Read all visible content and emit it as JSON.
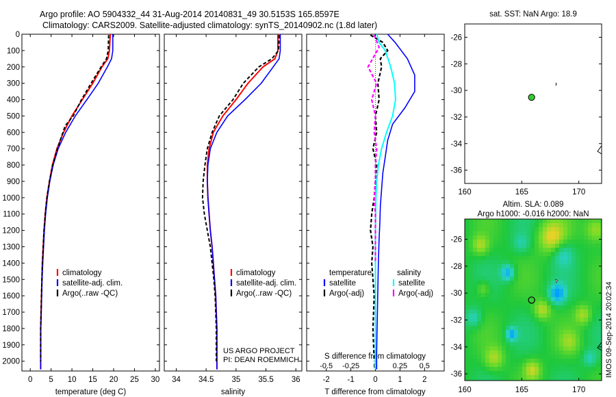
{
  "header": {
    "line1": "Argo profile: AO 5904332_44 31-Aug-2014 20140831_49 30.5153S 165.8597E",
    "line2": "Climatology: CARS2009. Satellite-adjusted climatology: synTS_20140902.nc (1.8d later)"
  },
  "colors": {
    "climatology": "#ff0000",
    "satellite": "#0000ff",
    "argo": "#000000",
    "sat_salinity": "#00ffff",
    "argo_salinity": "#ff00ff",
    "argo_marker": "#33cc33"
  },
  "chart_data": [
    {
      "type": "line",
      "id": "temperature",
      "xlabel": "temperature (deg C)",
      "ylabel": "",
      "xlim": [
        -2,
        31
      ],
      "ylim": [
        2060,
        0
      ],
      "xticks": [
        0,
        5,
        10,
        15,
        20,
        25,
        30
      ],
      "xtick_labels": [
        "0",
        "5",
        "10",
        "15",
        "20",
        "25",
        "30"
      ],
      "yticks": [
        0,
        100,
        200,
        300,
        400,
        500,
        600,
        700,
        800,
        900,
        1000,
        1100,
        1200,
        1300,
        1400,
        1500,
        1600,
        1700,
        1800,
        1900,
        2000
      ],
      "ytick_labels": [
        "0",
        "100",
        "200",
        "300",
        "400",
        "500",
        "600",
        "700",
        "800",
        "900",
        "1000",
        "1100",
        "1200",
        "1300",
        "1400",
        "1500",
        "1600",
        "1700",
        "1800",
        "1900",
        "2000"
      ],
      "legend": [
        "climatology",
        "satellite-adj. clim.",
        "Argo(..raw -QC)"
      ],
      "series": [
        {
          "name": "climatology",
          "color": "#ff0000",
          "x": [
            19.2,
            19.0,
            18.6,
            17.2,
            15.0,
            12.5,
            10.0,
            8.0,
            6.4,
            5.3,
            4.6,
            4.0,
            3.6,
            3.3,
            3.1,
            2.9,
            2.8,
            2.7,
            2.6,
            2.5,
            2.5
          ],
          "y": [
            0,
            100,
            150,
            200,
            300,
            400,
            500,
            600,
            700,
            800,
            900,
            1000,
            1100,
            1200,
            1300,
            1400,
            1500,
            1600,
            1700,
            1800,
            2050
          ]
        },
        {
          "name": "satellite-adj. clim.",
          "color": "#0000ff",
          "x": [
            19.8,
            19.8,
            19.5,
            18.5,
            16.3,
            13.6,
            10.8,
            8.5,
            6.7,
            5.5,
            4.7,
            4.1,
            3.7,
            3.4,
            3.2,
            3.0,
            2.85,
            2.75,
            2.65,
            2.55,
            2.5
          ],
          "y": [
            0,
            100,
            150,
            200,
            300,
            400,
            500,
            600,
            700,
            800,
            900,
            1000,
            1100,
            1200,
            1300,
            1400,
            1500,
            1600,
            1700,
            1800,
            2050
          ]
        },
        {
          "name": "Argo(..raw -QC)",
          "color": "#000000",
          "x": [
            18.8,
            18.7,
            18.3,
            17.0,
            14.6,
            12.3,
            10.3,
            8.4,
            6.5,
            5.4,
            4.6,
            4.0,
            3.6,
            3.3,
            3.1,
            2.95,
            2.8,
            2.7,
            2.6,
            2.5,
            2.5
          ],
          "y": [
            5,
            100,
            150,
            200,
            300,
            400,
            500,
            560,
            700,
            800,
            900,
            1000,
            1100,
            1200,
            1300,
            1400,
            1500,
            1600,
            1700,
            1800,
            2000
          ]
        }
      ]
    },
    {
      "type": "line",
      "id": "salinity",
      "xlabel": "salinity",
      "ylabel": "",
      "xlim": [
        33.8,
        36.1
      ],
      "ylim": [
        2060,
        0
      ],
      "xticks": [
        34,
        34.5,
        35,
        35.5,
        36
      ],
      "xtick_labels": [
        "34",
        "34.5",
        "35",
        "35.5",
        "36"
      ],
      "legend": [
        "climatology",
        "satellite-adj. clim.",
        "Argo(..raw -QC)"
      ],
      "annotation": [
        "US ARGO PROJECT",
        "PI: DEAN ROEMMICH"
      ],
      "series": [
        {
          "name": "climatology",
          "color": "#ff0000",
          "x": [
            35.7,
            35.7,
            35.65,
            35.45,
            35.2,
            35.0,
            34.78,
            34.62,
            34.55,
            34.52,
            34.52,
            34.53,
            34.55,
            34.57,
            34.6,
            34.62,
            34.64,
            34.66,
            34.67,
            34.68,
            34.68
          ],
          "y": [
            0,
            100,
            150,
            200,
            300,
            400,
            500,
            600,
            700,
            800,
            900,
            1000,
            1100,
            1200,
            1300,
            1400,
            1500,
            1600,
            1700,
            1800,
            2050
          ]
        },
        {
          "name": "satellite-adj. clim.",
          "color": "#0000ff",
          "x": [
            35.74,
            35.74,
            35.72,
            35.62,
            35.42,
            35.15,
            34.86,
            34.68,
            34.57,
            34.53,
            34.52,
            34.53,
            34.55,
            34.57,
            34.6,
            34.62,
            34.64,
            34.66,
            34.67,
            34.68,
            34.68
          ],
          "y": [
            0,
            100,
            150,
            200,
            300,
            400,
            500,
            600,
            700,
            800,
            900,
            1000,
            1100,
            1200,
            1300,
            1400,
            1500,
            1600,
            1700,
            1800,
            2050
          ]
        },
        {
          "name": "Argo(..raw -QC)",
          "color": "#000000",
          "x": [
            35.72,
            35.71,
            35.6,
            35.38,
            35.12,
            34.95,
            34.72,
            34.6,
            34.52,
            34.48,
            34.45,
            34.44,
            34.47,
            34.52,
            34.57,
            34.6,
            34.63,
            34.65,
            34.66,
            34.67,
            34.67
          ],
          "y": [
            5,
            100,
            150,
            200,
            300,
            400,
            500,
            600,
            700,
            800,
            900,
            1000,
            1100,
            1200,
            1300,
            1400,
            1500,
            1600,
            1700,
            1800,
            2000
          ]
        }
      ]
    },
    {
      "type": "line",
      "id": "difference",
      "xlabel": "T difference from climatology",
      "xlabel_top": "S difference from climatology",
      "xlim": [
        -2.8,
        2.8
      ],
      "ylim": [
        2060,
        0
      ],
      "xticks": [
        -2,
        -1,
        0,
        1,
        2
      ],
      "xtick_labels": [
        "-2",
        "-1",
        "0",
        "1",
        "2"
      ],
      "xticks_s": [
        -0.5,
        -0.25,
        0,
        0.25,
        0.5
      ],
      "xtick_labels_s": [
        "-0.5",
        "-0.25",
        "0",
        "0.25",
        "0.5"
      ],
      "legend_temperature_title": "temperature",
      "legend_salinity_title": "salinity",
      "legend": [
        "satellite",
        "Argo(-adj)",
        "satellite",
        "Argo(-adj)"
      ],
      "series": [
        {
          "name": "temperature satellite",
          "color": "#0000ff",
          "x": [
            0.5,
            0.8,
            1.3,
            1.6,
            1.6,
            1.2,
            0.7,
            0.5,
            0.4,
            0.3,
            0.25,
            0.2,
            0.18,
            0.15,
            0.12,
            0.1,
            0.08,
            0.06,
            0.05,
            0.05
          ],
          "y": [
            0,
            50,
            150,
            250,
            350,
            450,
            550,
            650,
            750,
            850,
            950,
            1050,
            1150,
            1250,
            1400,
            1550,
            1700,
            1850,
            1950,
            2050
          ]
        },
        {
          "name": "temperature Argo(-adj)",
          "color": "#000000",
          "x": [
            -0.2,
            0.3,
            0.5,
            0.2,
            0.25,
            0.1,
            0.15,
            0.0,
            0.05,
            -0.1,
            0.05,
            0.0,
            -0.05,
            -0.15,
            -0.2,
            -0.1,
            -0.15,
            -0.1,
            -0.05,
            -0.1,
            -0.05
          ],
          "y": [
            5,
            50,
            100,
            150,
            200,
            300,
            400,
            500,
            600,
            700,
            800,
            900,
            1000,
            1100,
            1200,
            1300,
            1400,
            1500,
            1600,
            1800,
            2000
          ]
        },
        {
          "name": "salinity satellite",
          "color": "#00ffff",
          "x": [
            0.05,
            0.15,
            0.4,
            0.62,
            0.78,
            0.82,
            0.7,
            0.45,
            0.25,
            0.12,
            0.05,
            0.02,
            0.0,
            0.0,
            0.0,
            0.0,
            0.0
          ],
          "y": [
            0,
            50,
            100,
            200,
            300,
            400,
            500,
            600,
            700,
            800,
            900,
            1000,
            1200,
            1400,
            1600,
            1800,
            2050
          ]
        },
        {
          "name": "salinity Argo(-adj)",
          "color": "#ff00ff",
          "x": [
            -0.05,
            0.15,
            -0.3,
            0.05,
            -0.15,
            0.0,
            -0.05,
            0.05,
            0.0,
            0.0,
            -0.05,
            0.0,
            0.0,
            0.0,
            0.0
          ],
          "y": [
            5,
            80,
            200,
            300,
            400,
            500,
            600,
            700,
            800,
            900,
            1000,
            1100,
            1200,
            1300,
            1400
          ]
        }
      ]
    },
    {
      "type": "scatter",
      "id": "sst-map",
      "title": "sat. SST: NaN Argo: 18.9",
      "xlim": [
        160,
        172
      ],
      "ylim": [
        -37,
        -25
      ],
      "xticks": [
        160,
        165,
        170
      ],
      "xtick_labels": [
        "160",
        "165",
        "170"
      ],
      "yticks": [
        -26,
        -28,
        -30,
        -32,
        -34,
        -36
      ],
      "ytick_labels": [
        "-26",
        "-28",
        "-30",
        "-32",
        "-34",
        "-36"
      ],
      "points": [
        {
          "x": 165.86,
          "y": -30.52
        }
      ]
    },
    {
      "type": "heatmap",
      "id": "sla-map",
      "title_line1": "Altim. SLA: 0.089",
      "title_line2": "Argo h1000: -0.016 h2000: NaN",
      "xlim": [
        160,
        172
      ],
      "ylim": [
        -36.5,
        -24.5
      ],
      "xticks": [
        160,
        165,
        170
      ],
      "xtick_labels": [
        "160",
        "165",
        "170"
      ],
      "yticks": [
        -26,
        -28,
        -30,
        -32,
        -34,
        -36
      ],
      "ytick_labels": [
        "-26",
        "-28",
        "-30",
        "-32",
        "-34",
        "-36"
      ],
      "points": [
        {
          "x": 165.86,
          "y": -30.52
        }
      ],
      "side_label": "IMOS 09-Sep-2014 20:02:34"
    }
  ]
}
